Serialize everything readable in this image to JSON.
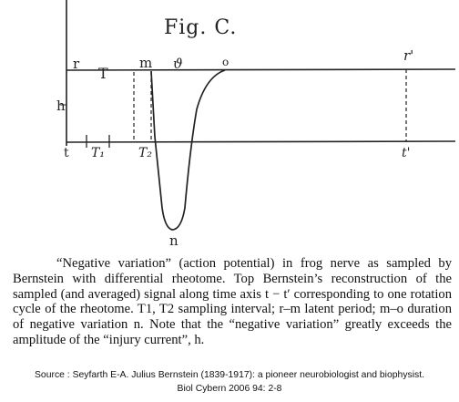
{
  "figure": {
    "title": "Fig. C.",
    "labels": {
      "r": "r",
      "T": "T",
      "m": "m",
      "v": "ϑ",
      "o": "o",
      "r_prime": "r'",
      "h": "h",
      "t": "t",
      "T1": "T₁",
      "T2": "T₂",
      "t_prime": "t'",
      "n": "n"
    }
  },
  "caption": {
    "text": "“Negative variation” (action potential) in frog nerve as sampled by Bernstein with differential rheotome. Top Bernstein’s reconstruction of the sampled (and averaged) signal along time axis t − t′ corresponding to one rotation cycle of the rheotome. T1, T2 sampling interval; r–m latent period; m–o duration of negative variation n. Note that the “negative variation” greatly exceeds the amplitude of the “injury current”, h."
  },
  "source": {
    "line1": "Source :  Seyfarth E-A.  Julius Bernstein (1839-1917): a pioneer neurobiologist and biophysist.",
    "line2": "Biol Cybern 2006 94: 2-8"
  }
}
